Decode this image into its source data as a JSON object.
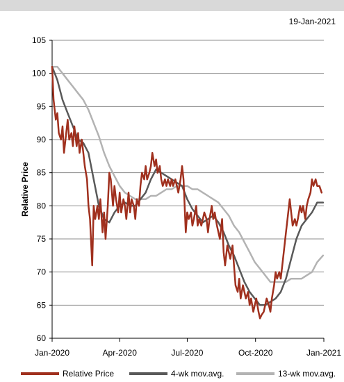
{
  "header": {
    "date": "19-Jan-2021"
  },
  "chart_data": {
    "type": "line",
    "ylabel": "Relative Price",
    "xlabel": "",
    "ylim": [
      60,
      105
    ],
    "yticks": [
      60,
      65,
      70,
      75,
      80,
      85,
      90,
      95,
      100,
      105
    ],
    "xlim": [
      "2020-01-01",
      "2021-01-01"
    ],
    "xticks": [
      {
        "label": "Jan-2020",
        "date": "2020-01-01"
      },
      {
        "label": "Apr-2020",
        "date": "2020-04-01"
      },
      {
        "label": "Jul-2020",
        "date": "2020-07-01"
      },
      {
        "label": "Oct-2020",
        "date": "2020-10-01"
      },
      {
        "label": "Jan-2021",
        "date": "2021-01-01"
      }
    ],
    "grid": true,
    "legend": "bottom",
    "series": [
      {
        "name": "Relative Price",
        "color": "#a0301e",
        "width": 2.5,
        "points": [
          [
            "2020-01-01",
            101
          ],
          [
            "2020-01-03",
            96
          ],
          [
            "2020-01-06",
            93
          ],
          [
            "2020-01-08",
            94
          ],
          [
            "2020-01-10",
            91
          ],
          [
            "2020-01-13",
            90
          ],
          [
            "2020-01-15",
            92
          ],
          [
            "2020-01-17",
            88
          ],
          [
            "2020-01-20",
            91
          ],
          [
            "2020-01-22",
            93
          ],
          [
            "2020-01-24",
            90
          ],
          [
            "2020-01-27",
            91
          ],
          [
            "2020-01-29",
            89
          ],
          [
            "2020-01-31",
            92
          ],
          [
            "2020-02-03",
            89
          ],
          [
            "2020-02-05",
            91
          ],
          [
            "2020-02-07",
            88
          ],
          [
            "2020-02-10",
            90
          ],
          [
            "2020-02-12",
            88
          ],
          [
            "2020-02-14",
            86
          ],
          [
            "2020-02-17",
            84
          ],
          [
            "2020-02-19",
            80
          ],
          [
            "2020-02-21",
            78
          ],
          [
            "2020-02-24",
            71
          ],
          [
            "2020-02-26",
            80
          ],
          [
            "2020-02-28",
            78
          ],
          [
            "2020-03-02",
            80
          ],
          [
            "2020-03-04",
            78
          ],
          [
            "2020-03-06",
            81
          ],
          [
            "2020-03-09",
            76
          ],
          [
            "2020-03-11",
            79
          ],
          [
            "2020-03-13",
            75
          ],
          [
            "2020-03-16",
            80
          ],
          [
            "2020-03-18",
            85
          ],
          [
            "2020-03-20",
            84
          ],
          [
            "2020-03-23",
            80
          ],
          [
            "2020-03-25",
            83
          ],
          [
            "2020-03-27",
            81
          ],
          [
            "2020-03-30",
            79
          ],
          [
            "2020-04-01",
            82
          ],
          [
            "2020-04-03",
            79
          ],
          [
            "2020-04-06",
            81
          ],
          [
            "2020-04-08",
            80
          ],
          [
            "2020-04-10",
            78
          ],
          [
            "2020-04-13",
            82
          ],
          [
            "2020-04-15",
            79
          ],
          [
            "2020-04-17",
            81
          ],
          [
            "2020-04-20",
            80
          ],
          [
            "2020-04-22",
            78
          ],
          [
            "2020-04-24",
            81
          ],
          [
            "2020-04-27",
            80
          ],
          [
            "2020-04-29",
            83
          ],
          [
            "2020-05-01",
            85
          ],
          [
            "2020-05-04",
            84
          ],
          [
            "2020-05-06",
            86
          ],
          [
            "2020-05-08",
            84
          ],
          [
            "2020-05-11",
            85
          ],
          [
            "2020-05-13",
            86
          ],
          [
            "2020-05-15",
            88
          ],
          [
            "2020-05-18",
            86
          ],
          [
            "2020-05-20",
            87
          ],
          [
            "2020-05-22",
            85
          ],
          [
            "2020-05-25",
            86
          ],
          [
            "2020-05-27",
            84
          ],
          [
            "2020-05-29",
            83
          ],
          [
            "2020-06-01",
            84
          ],
          [
            "2020-06-03",
            83
          ],
          [
            "2020-06-05",
            84
          ],
          [
            "2020-06-08",
            83
          ],
          [
            "2020-06-10",
            84
          ],
          [
            "2020-06-12",
            83
          ],
          [
            "2020-06-15",
            84
          ],
          [
            "2020-06-17",
            83
          ],
          [
            "2020-06-19",
            82
          ],
          [
            "2020-06-22",
            84
          ],
          [
            "2020-06-24",
            86
          ],
          [
            "2020-06-26",
            84
          ],
          [
            "2020-06-29",
            76
          ],
          [
            "2020-07-01",
            79
          ],
          [
            "2020-07-03",
            78
          ],
          [
            "2020-07-06",
            79
          ],
          [
            "2020-07-08",
            77
          ],
          [
            "2020-07-10",
            78
          ],
          [
            "2020-07-13",
            80
          ],
          [
            "2020-07-15",
            77
          ],
          [
            "2020-07-17",
            78
          ],
          [
            "2020-07-20",
            77
          ],
          [
            "2020-07-22",
            78
          ],
          [
            "2020-07-24",
            79
          ],
          [
            "2020-07-27",
            78
          ],
          [
            "2020-07-29",
            76
          ],
          [
            "2020-07-31",
            78
          ],
          [
            "2020-08-03",
            80
          ],
          [
            "2020-08-05",
            78
          ],
          [
            "2020-08-07",
            79
          ],
          [
            "2020-08-10",
            77
          ],
          [
            "2020-08-12",
            76
          ],
          [
            "2020-08-14",
            75
          ],
          [
            "2020-08-17",
            78
          ],
          [
            "2020-08-19",
            73
          ],
          [
            "2020-08-21",
            71
          ],
          [
            "2020-08-24",
            74
          ],
          [
            "2020-08-26",
            73
          ],
          [
            "2020-08-28",
            72
          ],
          [
            "2020-08-31",
            74
          ],
          [
            "2020-09-02",
            71
          ],
          [
            "2020-09-04",
            68
          ],
          [
            "2020-09-07",
            67
          ],
          [
            "2020-09-09",
            69
          ],
          [
            "2020-09-11",
            66
          ],
          [
            "2020-09-14",
            68
          ],
          [
            "2020-09-16",
            67
          ],
          [
            "2020-09-18",
            66
          ],
          [
            "2020-09-21",
            67
          ],
          [
            "2020-09-23",
            65
          ],
          [
            "2020-09-25",
            66
          ],
          [
            "2020-09-28",
            64
          ],
          [
            "2020-09-30",
            65
          ],
          [
            "2020-10-02",
            66
          ],
          [
            "2020-10-05",
            64
          ],
          [
            "2020-10-07",
            63
          ],
          [
            "2020-10-09",
            63.5
          ],
          [
            "2020-10-12",
            64
          ],
          [
            "2020-10-14",
            65
          ],
          [
            "2020-10-16",
            66
          ],
          [
            "2020-10-19",
            65
          ],
          [
            "2020-10-21",
            64
          ],
          [
            "2020-10-23",
            66
          ],
          [
            "2020-10-26",
            68
          ],
          [
            "2020-10-28",
            70
          ],
          [
            "2020-10-30",
            69
          ],
          [
            "2020-11-02",
            70
          ],
          [
            "2020-11-04",
            69
          ],
          [
            "2020-11-06",
            71
          ],
          [
            "2020-11-09",
            74
          ],
          [
            "2020-11-11",
            76
          ],
          [
            "2020-11-13",
            78
          ],
          [
            "2020-11-16",
            81
          ],
          [
            "2020-11-18",
            79
          ],
          [
            "2020-11-20",
            77
          ],
          [
            "2020-11-23",
            78
          ],
          [
            "2020-11-25",
            77
          ],
          [
            "2020-11-27",
            78
          ],
          [
            "2020-11-30",
            80
          ],
          [
            "2020-12-02",
            79
          ],
          [
            "2020-12-04",
            80
          ],
          [
            "2020-12-07",
            78
          ],
          [
            "2020-12-09",
            80
          ],
          [
            "2020-12-11",
            81
          ],
          [
            "2020-12-14",
            82
          ],
          [
            "2020-12-16",
            84
          ],
          [
            "2020-12-18",
            83
          ],
          [
            "2020-12-21",
            84
          ],
          [
            "2020-12-23",
            83
          ],
          [
            "2020-12-26",
            83
          ],
          [
            "2020-12-29",
            82
          ]
        ]
      },
      {
        "name": "4-wk mov.avg.",
        "color": "#595959",
        "width": 2.5,
        "points": [
          [
            "2020-01-01",
            101
          ],
          [
            "2020-01-08",
            99
          ],
          [
            "2020-01-15",
            96
          ],
          [
            "2020-01-22",
            94
          ],
          [
            "2020-01-29",
            92
          ],
          [
            "2020-02-05",
            90
          ],
          [
            "2020-02-12",
            89.5
          ],
          [
            "2020-02-19",
            88
          ],
          [
            "2020-02-26",
            84
          ],
          [
            "2020-03-04",
            80
          ],
          [
            "2020-03-11",
            78
          ],
          [
            "2020-03-18",
            77.5
          ],
          [
            "2020-03-25",
            79
          ],
          [
            "2020-04-01",
            80
          ],
          [
            "2020-04-08",
            80.5
          ],
          [
            "2020-04-15",
            80
          ],
          [
            "2020-04-22",
            80
          ],
          [
            "2020-04-29",
            81
          ],
          [
            "2020-05-06",
            82
          ],
          [
            "2020-05-13",
            84
          ],
          [
            "2020-05-20",
            85.5
          ],
          [
            "2020-05-27",
            85
          ],
          [
            "2020-06-03",
            84.5
          ],
          [
            "2020-06-10",
            84
          ],
          [
            "2020-06-17",
            83.5
          ],
          [
            "2020-06-24",
            83
          ],
          [
            "2020-07-01",
            81
          ],
          [
            "2020-07-08",
            79.5
          ],
          [
            "2020-07-15",
            78.5
          ],
          [
            "2020-07-22",
            77.5
          ],
          [
            "2020-07-29",
            78
          ],
          [
            "2020-08-05",
            78.5
          ],
          [
            "2020-08-12",
            77.5
          ],
          [
            "2020-08-19",
            76
          ],
          [
            "2020-08-26",
            74
          ],
          [
            "2020-09-02",
            72.5
          ],
          [
            "2020-09-09",
            70.5
          ],
          [
            "2020-09-16",
            68.5
          ],
          [
            "2020-09-23",
            67
          ],
          [
            "2020-09-30",
            66
          ],
          [
            "2020-10-07",
            65
          ],
          [
            "2020-10-14",
            65
          ],
          [
            "2020-10-21",
            65.5
          ],
          [
            "2020-10-28",
            66
          ],
          [
            "2020-11-04",
            67
          ],
          [
            "2020-11-11",
            69
          ],
          [
            "2020-11-18",
            72
          ],
          [
            "2020-11-25",
            75
          ],
          [
            "2020-12-02",
            77
          ],
          [
            "2020-12-09",
            78
          ],
          [
            "2020-12-16",
            79
          ],
          [
            "2020-12-23",
            80.5
          ],
          [
            "2020-12-31",
            80.5
          ]
        ]
      },
      {
        "name": "13-wk mov.avg.",
        "color": "#b3b3b3",
        "width": 2.5,
        "points": [
          [
            "2020-01-01",
            101
          ],
          [
            "2020-01-08",
            101
          ],
          [
            "2020-01-15",
            100
          ],
          [
            "2020-01-22",
            99
          ],
          [
            "2020-01-29",
            98
          ],
          [
            "2020-02-05",
            97
          ],
          [
            "2020-02-12",
            96
          ],
          [
            "2020-02-19",
            94.5
          ],
          [
            "2020-02-26",
            92.5
          ],
          [
            "2020-03-04",
            90.5
          ],
          [
            "2020-03-11",
            88
          ],
          [
            "2020-03-18",
            86
          ],
          [
            "2020-03-25",
            84.5
          ],
          [
            "2020-04-01",
            83
          ],
          [
            "2020-04-08",
            82
          ],
          [
            "2020-04-15",
            81.5
          ],
          [
            "2020-04-22",
            81
          ],
          [
            "2020-04-29",
            81
          ],
          [
            "2020-05-06",
            81
          ],
          [
            "2020-05-13",
            81.5
          ],
          [
            "2020-05-20",
            81.5
          ],
          [
            "2020-05-27",
            82
          ],
          [
            "2020-06-03",
            82.5
          ],
          [
            "2020-06-10",
            82.5
          ],
          [
            "2020-06-17",
            83
          ],
          [
            "2020-06-24",
            83
          ],
          [
            "2020-07-01",
            83
          ],
          [
            "2020-07-08",
            82.5
          ],
          [
            "2020-07-15",
            82.5
          ],
          [
            "2020-07-22",
            82
          ],
          [
            "2020-07-29",
            81.5
          ],
          [
            "2020-08-05",
            81
          ],
          [
            "2020-08-12",
            80.5
          ],
          [
            "2020-08-19",
            79.5
          ],
          [
            "2020-08-26",
            78.5
          ],
          [
            "2020-09-02",
            77
          ],
          [
            "2020-09-09",
            76
          ],
          [
            "2020-09-16",
            74.5
          ],
          [
            "2020-09-23",
            73
          ],
          [
            "2020-09-30",
            71.5
          ],
          [
            "2020-10-07",
            70.5
          ],
          [
            "2020-10-14",
            69.5
          ],
          [
            "2020-10-21",
            68.5
          ],
          [
            "2020-10-28",
            68.5
          ],
          [
            "2020-11-04",
            68.5
          ],
          [
            "2020-11-11",
            68.5
          ],
          [
            "2020-11-18",
            69
          ],
          [
            "2020-11-25",
            69
          ],
          [
            "2020-12-02",
            69
          ],
          [
            "2020-12-09",
            69.5
          ],
          [
            "2020-12-16",
            70
          ],
          [
            "2020-12-23",
            71.5
          ],
          [
            "2020-12-31",
            72.5
          ]
        ]
      }
    ]
  }
}
